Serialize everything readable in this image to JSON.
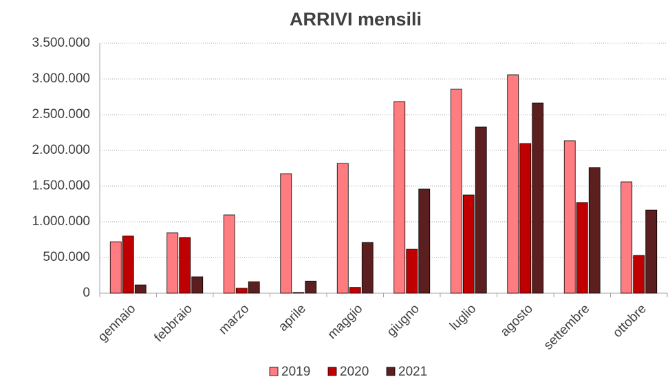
{
  "chart_data": {
    "type": "bar",
    "title": "ARRIVI mensili",
    "categories": [
      "gennaio",
      "febbraio",
      "marzo",
      "aprile",
      "maggio",
      "giugno",
      "luglio",
      "agosto",
      "settembre",
      "ottobre"
    ],
    "series": [
      {
        "name": "2019",
        "color": "#ff7c80",
        "values": [
          720000,
          846000,
          1096000,
          1673000,
          1817000,
          2683000,
          2856000,
          3058000,
          2135000,
          1558000
        ]
      },
      {
        "name": "2020",
        "color": "#c00000",
        "values": [
          800000,
          780000,
          70000,
          10000,
          80000,
          615000,
          1375000,
          2096000,
          1270000,
          529000
        ]
      },
      {
        "name": "2021",
        "color": "#5c1f1f",
        "values": [
          115000,
          230000,
          160000,
          170000,
          710000,
          1460000,
          2327000,
          2663000,
          1760000,
          1163000
        ]
      }
    ],
    "ylim": [
      0,
      3500000
    ],
    "yticks": [
      0,
      {
        "value": 500000,
        "label": "500.000"
      },
      {
        "value": 1000000,
        "label": "1.000.000"
      },
      {
        "value": 1500000,
        "label": "1.500.000"
      },
      {
        "value": 2000000,
        "label": "2.000.000"
      },
      {
        "value": 2500000,
        "label": "2.500.000"
      },
      {
        "value": 3000000,
        "label": "3.000.000"
      },
      {
        "value": 3500000,
        "label": "3.500.000"
      }
    ],
    "grid": true,
    "legend": "bottom"
  }
}
